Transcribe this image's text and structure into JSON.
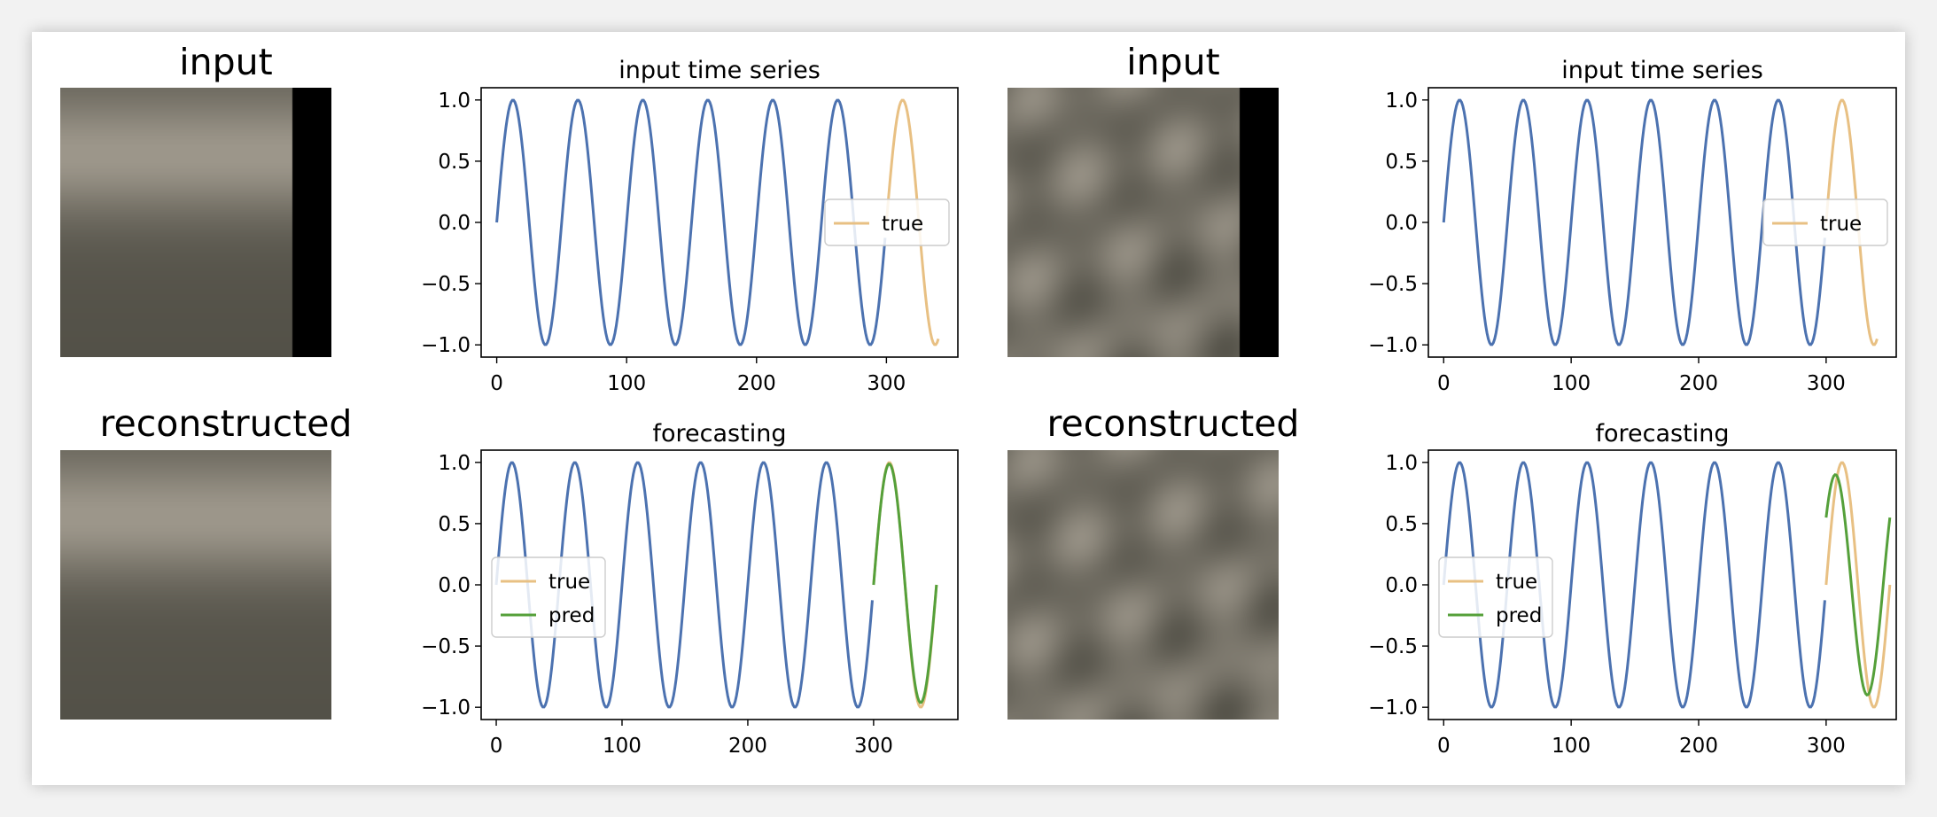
{
  "panels": [
    {
      "image_title": "input",
      "image_kind": "horizontal-bands-masked"
    },
    {
      "image_title": "reconstructed",
      "image_kind": "horizontal-bands"
    },
    {
      "image_title": "input",
      "image_kind": "blobs-masked"
    },
    {
      "image_title": "reconstructed",
      "image_kind": "blobs"
    }
  ],
  "colors": {
    "history": "#4c72b0",
    "true": "#e8c083",
    "pred": "#55a03a",
    "image_light": "#9c968a",
    "image_dark": "#4f4d44",
    "mask": "#000000"
  },
  "chart_data": [
    {
      "type": "line",
      "title": "input time series",
      "xlim": [
        -12,
        355
      ],
      "ylim": [
        -1.1,
        1.1
      ],
      "xticks": [
        0,
        100,
        200,
        300
      ],
      "yticks": [
        1.0,
        0.5,
        0.0,
        -0.5,
        -1.0
      ],
      "ytick_labels": [
        "1.0",
        "0.5",
        "0.0",
        "−0.5",
        "−1.0"
      ],
      "xtick_labels": [
        "0",
        "100",
        "200",
        "300"
      ],
      "legend": {
        "placement": "center-right",
        "entries": [
          "true"
        ]
      },
      "series": [
        {
          "role": "history",
          "function": "sin(2*pi*x/50)",
          "x_range": [
            0,
            299
          ]
        },
        {
          "name": "true",
          "function": "sin(2*pi*x/50)",
          "x_range": [
            300,
            340
          ]
        }
      ]
    },
    {
      "type": "line",
      "title": "forecasting",
      "xlim": [
        -12,
        367
      ],
      "ylim": [
        -1.1,
        1.1
      ],
      "xticks": [
        0,
        100,
        200,
        300
      ],
      "yticks": [
        1.0,
        0.5,
        0.0,
        -0.5,
        -1.0
      ],
      "ytick_labels": [
        "1.0",
        "0.5",
        "0.0",
        "−0.5",
        "−1.0"
      ],
      "xtick_labels": [
        "0",
        "100",
        "200",
        "300"
      ],
      "legend": {
        "placement": "center-left",
        "entries": [
          "true",
          "pred"
        ]
      },
      "series": [
        {
          "role": "history",
          "function": "sin(2*pi*x/50)",
          "x_range": [
            0,
            299
          ]
        },
        {
          "name": "true",
          "function": "sin(2*pi*x/50)",
          "x_range": [
            300,
            350
          ]
        },
        {
          "name": "pred",
          "function": "sin(2*pi*x/50)*(1-0.05*(x-300)/50)",
          "x_range": [
            300,
            350
          ]
        }
      ]
    },
    {
      "type": "line",
      "title": "input time series",
      "xlim": [
        -12,
        355
      ],
      "ylim": [
        -1.1,
        1.1
      ],
      "xticks": [
        0,
        100,
        200,
        300
      ],
      "yticks": [
        1.0,
        0.5,
        0.0,
        -0.5,
        -1.0
      ],
      "ytick_labels": [
        "1.0",
        "0.5",
        "0.0",
        "−0.5",
        "−1.0"
      ],
      "xtick_labels": [
        "0",
        "100",
        "200",
        "300"
      ],
      "legend": {
        "placement": "center-right",
        "entries": [
          "true"
        ]
      },
      "series": [
        {
          "role": "history",
          "function": "sin(2*pi*x/50)",
          "x_range": [
            0,
            299
          ]
        },
        {
          "name": "true",
          "function": "sin(2*pi*x/50)",
          "x_range": [
            300,
            340
          ]
        }
      ]
    },
    {
      "type": "line",
      "title": "forecasting",
      "xlim": [
        -12,
        355
      ],
      "ylim": [
        -1.1,
        1.1
      ],
      "xticks": [
        0,
        100,
        200,
        300
      ],
      "yticks": [
        1.0,
        0.5,
        0.0,
        -0.5,
        -1.0
      ],
      "ytick_labels": [
        "1.0",
        "0.5",
        "0.0",
        "−0.5",
        "−1.0"
      ],
      "xtick_labels": [
        "0",
        "100",
        "200",
        "300"
      ],
      "legend": {
        "placement": "center-left",
        "entries": [
          "true",
          "pred"
        ]
      },
      "series": [
        {
          "role": "history",
          "function": "sin(2*pi*x/50)",
          "x_range": [
            0,
            299
          ]
        },
        {
          "name": "true",
          "function": "sin(2*pi*x/50)",
          "x_range": [
            300,
            350
          ]
        },
        {
          "name": "pred",
          "function": "0.9*sin(2*pi*(x-315)/50 - 0.6)*-1",
          "x_range": [
            300,
            350
          ]
        }
      ]
    }
  ]
}
